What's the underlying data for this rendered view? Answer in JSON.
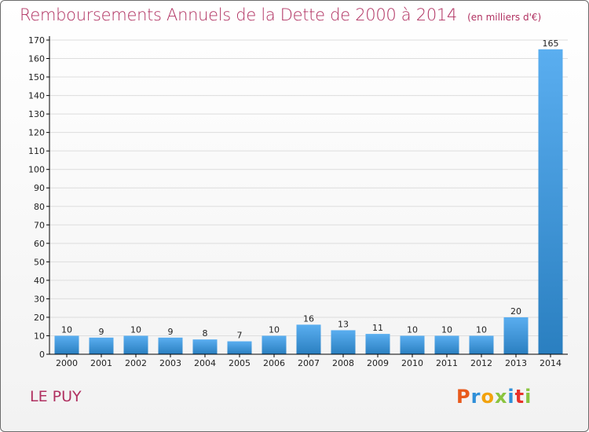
{
  "header": {
    "title": "Remboursements Annuels de la Dette de 2000 à 2014",
    "unit": "(en milliers d'€)"
  },
  "footer": {
    "commune": "LE PUY",
    "brand": "Proxiti",
    "brand_colors": [
      "#e85a1c",
      "#2f8fd8",
      "#f2a20c",
      "#8ac43f",
      "#2f8fd8",
      "#e8322a",
      "#8ac43f"
    ]
  },
  "colors": {
    "bar_light": "#5aaef0",
    "bar_dark": "#2a7fc0",
    "title": "#b03060",
    "grid": "#dddddd",
    "axis": "#000000"
  },
  "chart_data": {
    "type": "bar",
    "title": "Remboursements Annuels de la Dette de 2000 à 2014",
    "ylabel": "en milliers d'€",
    "xlabel": "",
    "categories": [
      "2000",
      "2001",
      "2002",
      "2003",
      "2004",
      "2005",
      "2006",
      "2007",
      "2008",
      "2009",
      "2010",
      "2011",
      "2012",
      "2013",
      "2014"
    ],
    "values": [
      10,
      9,
      10,
      9,
      8,
      7,
      10,
      16,
      13,
      11,
      10,
      10,
      10,
      20,
      165
    ],
    "ylim": [
      0,
      170
    ],
    "ytick_step": 10,
    "grid": true,
    "legend": "none"
  }
}
